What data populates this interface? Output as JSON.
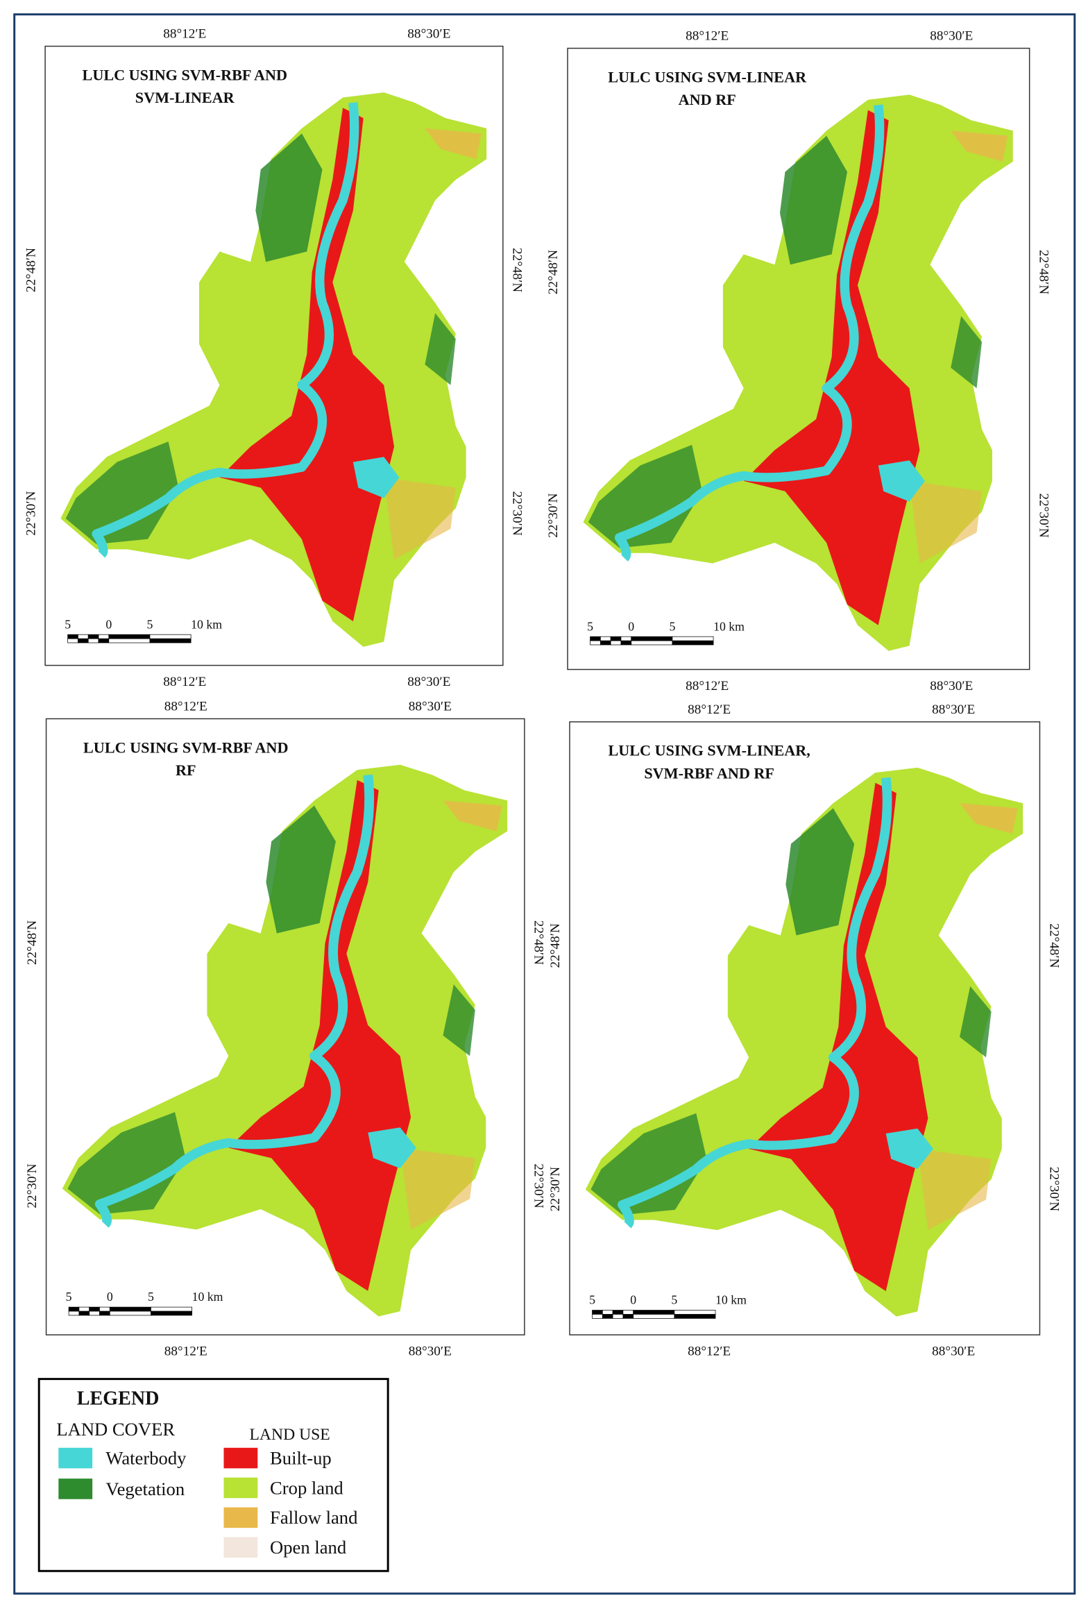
{
  "panels": [
    {
      "title_lines": [
        "LULC USING SVM-RBF AND",
        "SVM-LINEAR"
      ],
      "lon_labels": [
        "88°12′E",
        "88°30′E"
      ],
      "lat_labels": [
        "22°48′N",
        "22°30′N"
      ],
      "scale_labels": [
        "5",
        "0",
        "5",
        "10 km"
      ]
    },
    {
      "title_lines": [
        "LULC USING SVM-LINEAR",
        "AND RF"
      ],
      "lon_labels": [
        "88°12′E",
        "88°30′E"
      ],
      "lat_labels": [
        "22°48′N",
        "22°30′N"
      ],
      "scale_labels": [
        "5",
        "0",
        "5",
        "10 km"
      ]
    },
    {
      "title_lines": [
        "LULC USING SVM-RBF AND",
        "RF"
      ],
      "lon_labels": [
        "88°12′E",
        "88°30′E"
      ],
      "lat_labels": [
        "22°48′N",
        "22°30′N"
      ],
      "scale_labels": [
        "5",
        "0",
        "5",
        "10 km"
      ]
    },
    {
      "title_lines": [
        "LULC USING SVM-LINEAR,",
        "SVM-RBF AND RF"
      ],
      "lon_labels": [
        "88°12′E",
        "88°30′E"
      ],
      "lat_labels": [
        "22°48′N",
        "22°30′N"
      ],
      "scale_labels": [
        "5",
        "0",
        "5",
        "10 km"
      ]
    }
  ],
  "legend": {
    "title": "LEGEND",
    "land_cover": {
      "heading": "LAND COVER",
      "items": [
        "Waterbody",
        "Vegetation"
      ]
    },
    "land_use": {
      "heading": "LAND USE",
      "items": [
        "Built-up",
        "Crop land",
        "Fallow land",
        "Open land"
      ]
    }
  }
}
